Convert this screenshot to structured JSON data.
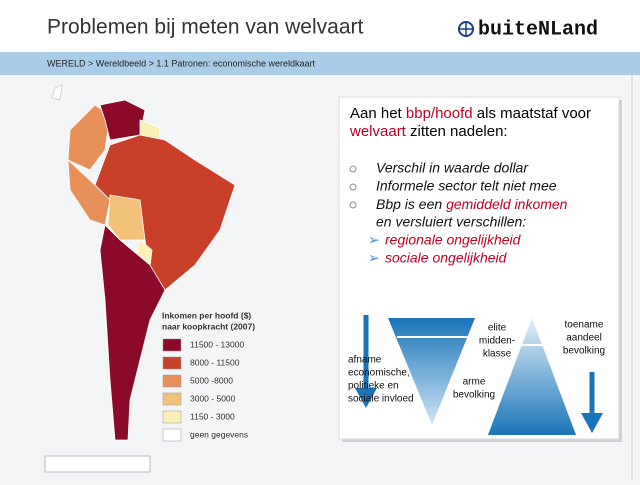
{
  "header": {
    "title": "Problemen bij meten van welvaart",
    "logo": "buiteNLand"
  },
  "breadcrumb": "WERELD > Wereldbeeld > 1.1 Patronen: economische wereldkaart",
  "legend": {
    "title": [
      "Inkomen per hoofd ($)",
      "naar koopkracht (2007)"
    ],
    "items": [
      {
        "label": "11500 - 13000",
        "color": "#8b0a2a"
      },
      {
        "label": "8000 - 11500",
        "color": "#c8402a"
      },
      {
        "label": "5000 -8000",
        "color": "#e8905a"
      },
      {
        "label": "3000 - 5000",
        "color": "#f3c27a"
      },
      {
        "label": "1150 - 3000",
        "color": "#fbf0b8"
      },
      {
        "label": "geen gegevens",
        "color": "#ffffff"
      }
    ]
  },
  "box": {
    "intro": [
      [
        "Aan het ",
        "bbp/hoofd",
        " als maatstaf voor"
      ],
      [
        "welvaart",
        " zitten nadelen:"
      ]
    ],
    "bullets": [
      [
        "Verschil in waarde dollar"
      ],
      [
        "Informele sector telt niet mee"
      ],
      [
        "Bbp is een ",
        "gemiddeld inkomen"
      ],
      [
        "en versluiert verschillen:"
      ]
    ],
    "subbullets": [
      "regionale ongelijkheid",
      "sociale ongelijkheid"
    ],
    "diagram": {
      "left": [
        "afname",
        "economische,",
        "politieke en",
        "sociale invloed"
      ],
      "top": [
        "elite",
        "midden-",
        "klasse"
      ],
      "bottom": [
        "arme",
        "bevolking"
      ],
      "right": [
        "toename",
        "aandeel",
        "bevolking"
      ]
    }
  }
}
